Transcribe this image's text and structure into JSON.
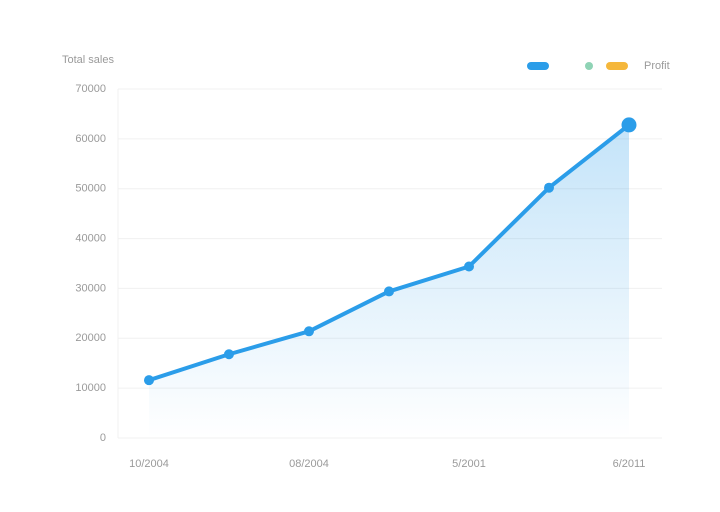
{
  "chart_data": {
    "type": "line",
    "title": "Total sales",
    "categories": [
      "10/2004",
      null,
      "08/2004",
      null,
      "5/2001",
      null,
      "6/2011"
    ],
    "series": [
      {
        "color": "#2b9de9",
        "values": [
          11600,
          16800,
          21400,
          29400,
          34400,
          50200,
          62800
        ]
      }
    ],
    "legend": [
      {
        "color": "#2b9de9"
      },
      {
        "color": "#8fd3b5"
      },
      {
        "color": "#f5b73b",
        "label": "Profit"
      }
    ],
    "ylim": [
      0,
      70000
    ],
    "yticks": [
      0,
      10000,
      20000,
      30000,
      40000,
      50000,
      60000,
      70000
    ],
    "grid": true
  }
}
